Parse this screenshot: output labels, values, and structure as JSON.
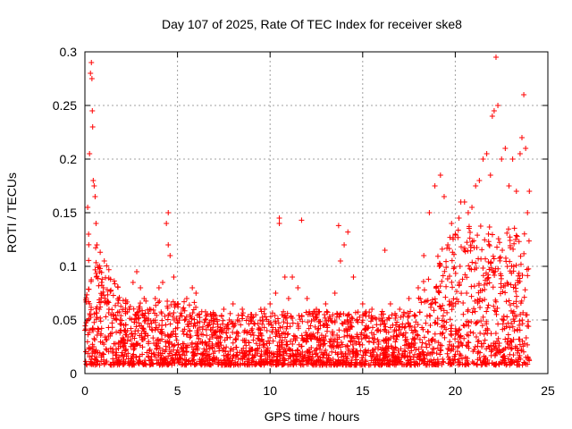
{
  "chart_data": {
    "type": "scatter",
    "title": "Day 107 of 2025, Rate Of TEC Index for receiver ske8",
    "xlabel": "GPS time / hours",
    "ylabel": "ROTI / TECUs",
    "xlim": [
      0,
      25
    ],
    "ylim": [
      0,
      0.3
    ],
    "grid": true,
    "marker": "+",
    "series": [
      {
        "name": "ske8",
        "color": "#ff0000",
        "x": [
          0.15,
          0.2,
          0.25,
          0.3,
          0.35,
          0.38,
          0.4,
          0.42,
          0.45,
          0.5,
          0.55,
          0.6,
          0.65,
          0.7,
          0.8,
          0.9,
          1.0,
          1.1,
          1.2,
          1.3,
          1.5,
          1.7,
          1.9,
          2.1,
          2.3,
          2.6,
          2.8,
          3.0,
          3.2,
          3.5,
          3.8,
          4.0,
          4.2,
          4.4,
          4.5,
          4.5,
          4.6,
          4.8,
          5.0,
          5.3,
          5.5,
          5.8,
          6.0,
          6.5,
          7.0,
          7.5,
          7.8,
          8.0,
          8.5,
          9.0,
          9.5,
          9.7,
          10.0,
          10.3,
          10.5,
          10.5,
          10.8,
          11.0,
          11.2,
          11.5,
          11.7,
          12.0,
          12.5,
          13.0,
          13.5,
          13.7,
          13.8,
          14.0,
          14.2,
          14.5,
          15.0,
          15.5,
          16.0,
          16.2,
          16.5,
          17.0,
          17.5,
          18.0,
          18.3,
          18.6,
          18.9,
          19.2,
          19.4,
          19.6,
          19.8,
          20.0,
          20.2,
          20.3,
          20.5,
          20.7,
          20.9,
          21.1,
          21.3,
          21.5,
          21.7,
          21.9,
          22.0,
          22.1,
          22.2,
          22.3,
          22.5,
          22.7,
          22.9,
          23.1,
          23.3,
          23.5,
          23.6,
          23.7,
          23.8,
          23.9,
          24.0
        ],
        "y": [
          0.155,
          0.13,
          0.205,
          0.28,
          0.29,
          0.275,
          0.245,
          0.23,
          0.18,
          0.175,
          0.165,
          0.14,
          0.12,
          0.1,
          0.095,
          0.085,
          0.08,
          0.07,
          0.065,
          0.06,
          0.055,
          0.05,
          0.05,
          0.045,
          0.04,
          0.085,
          0.095,
          0.08,
          0.07,
          0.06,
          0.07,
          0.08,
          0.085,
          0.14,
          0.15,
          0.12,
          0.11,
          0.09,
          0.065,
          0.06,
          0.07,
          0.08,
          0.075,
          0.05,
          0.055,
          0.06,
          0.05,
          0.065,
          0.06,
          0.055,
          0.06,
          0.06,
          0.065,
          0.075,
          0.145,
          0.14,
          0.09,
          0.07,
          0.09,
          0.08,
          0.143,
          0.07,
          0.06,
          0.065,
          0.075,
          0.138,
          0.105,
          0.12,
          0.132,
          0.09,
          0.065,
          0.06,
          0.055,
          0.115,
          0.065,
          0.06,
          0.07,
          0.08,
          0.11,
          0.15,
          0.175,
          0.185,
          0.165,
          0.12,
          0.14,
          0.13,
          0.145,
          0.16,
          0.16,
          0.15,
          0.155,
          0.175,
          0.18,
          0.2,
          0.205,
          0.185,
          0.24,
          0.245,
          0.295,
          0.25,
          0.2,
          0.21,
          0.175,
          0.2,
          0.17,
          0.205,
          0.22,
          0.26,
          0.21,
          0.15,
          0.17
        ]
      }
    ]
  }
}
